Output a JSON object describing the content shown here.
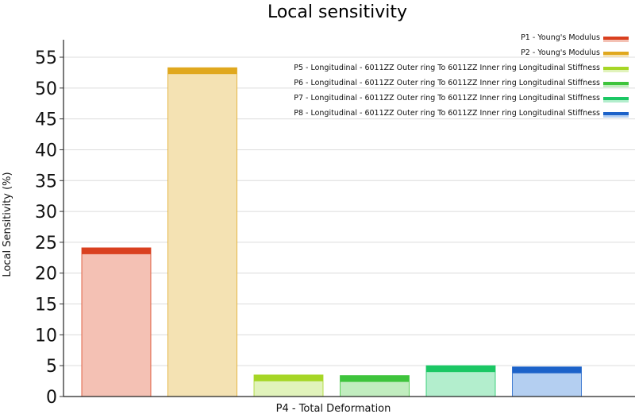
{
  "chart_data": {
    "type": "bar",
    "title": "Local sensitivity",
    "xlabel": "P4 - Total Deformation",
    "ylabel": "Local Sensitivity (%)",
    "ylim": [
      0,
      57
    ],
    "yticks": [
      0,
      5,
      10,
      15,
      20,
      25,
      30,
      35,
      40,
      45,
      50,
      55
    ],
    "grid": true,
    "legend_position": "top-right",
    "categories": [
      "P4 - Total Deformation"
    ],
    "series": [
      {
        "name": "P1 - Young's Modulus",
        "values": [
          24.1
        ],
        "color": "#d9401f",
        "fill": "#f4c1b4"
      },
      {
        "name": "P2 - Young's Modulus",
        "values": [
          53.3
        ],
        "color": "#e0a81e",
        "fill": "#f4e2b3"
      },
      {
        "name": "P5 - Longitudinal - 6011ZZ Outer ring To 6011ZZ Inner ring Longitudinal Stiffness",
        "values": [
          3.5
        ],
        "color": "#a6d626",
        "fill": "#e1f3bb"
      },
      {
        "name": "P6 - Longitudinal - 6011ZZ Outer ring To 6011ZZ Inner ring Longitudinal Stiffness",
        "values": [
          3.4
        ],
        "color": "#3ec43c",
        "fill": "#c1edbf"
      },
      {
        "name": "P7 - Longitudinal - 6011ZZ Outer ring To 6011ZZ Inner ring Longitudinal Stiffness",
        "values": [
          5.0
        ],
        "color": "#1bc764",
        "fill": "#b3eecd"
      },
      {
        "name": "P8 - Longitudinal - 6011ZZ Outer ring To 6011ZZ Inner ring Longitudinal Stiffness",
        "values": [
          4.8
        ],
        "color": "#1c62c9",
        "fill": "#b4cff1"
      }
    ]
  }
}
